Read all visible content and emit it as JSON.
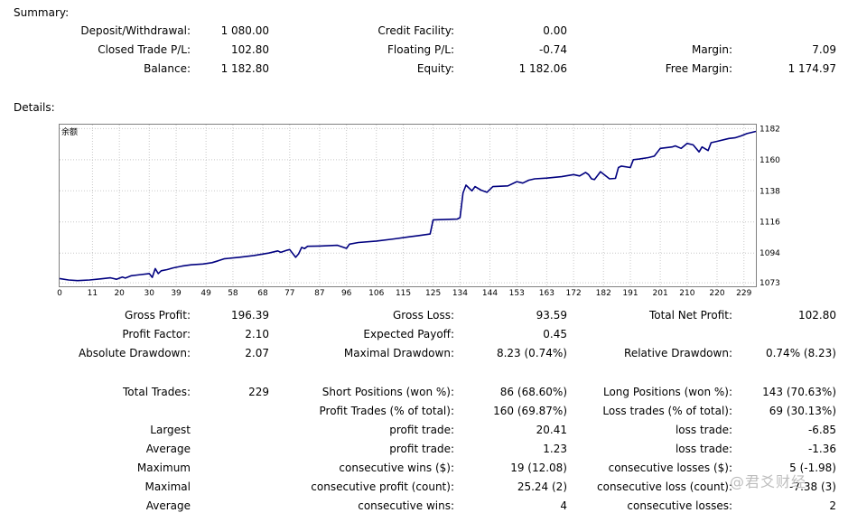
{
  "summary": {
    "title": "Summary:",
    "rows": [
      [
        {
          "label": "Deposit/Withdrawal:",
          "value": "1 080.00"
        },
        {
          "label": "Credit Facility:",
          "value": "0.00"
        },
        null
      ],
      [
        {
          "label": "Closed Trade P/L:",
          "value": "102.80"
        },
        {
          "label": "Floating P/L:",
          "value": "-0.74"
        },
        {
          "label": "Margin:",
          "value": "7.09"
        }
      ],
      [
        {
          "label": "Balance:",
          "value": "1 182.80"
        },
        {
          "label": "Equity:",
          "value": "1 182.06"
        },
        {
          "label": "Free Margin:",
          "value": "1 174.97"
        }
      ]
    ]
  },
  "details": {
    "title": "Details:"
  },
  "chart_data": {
    "type": "line",
    "title": "",
    "legend_label": "余额",
    "x_ticks": [
      0,
      11,
      20,
      30,
      39,
      49,
      58,
      68,
      77,
      87,
      96,
      106,
      115,
      125,
      134,
      144,
      153,
      163,
      172,
      182,
      191,
      201,
      210,
      220,
      229
    ],
    "y_ticks": [
      1073,
      1094,
      1116,
      1138,
      1160,
      1182
    ],
    "xlim": [
      0,
      233
    ],
    "ylim": [
      1070.5,
      1184.8
    ],
    "grid": true,
    "series": [
      {
        "name": "",
        "color": "#00007f",
        "x": [
          0,
          3,
          6,
          10,
          14,
          17,
          19,
          21,
          22,
          24,
          26,
          30,
          31,
          32,
          33,
          34,
          36,
          38,
          41,
          44,
          48,
          51,
          53,
          55,
          60,
          65,
          70,
          73,
          74,
          75,
          76,
          77,
          79,
          80,
          81,
          82,
          83,
          87,
          93,
          95,
          96,
          97,
          100,
          106,
          112,
          117,
          120,
          124,
          125,
          133,
          134,
          135,
          136,
          138,
          139,
          141,
          143,
          145,
          150,
          153,
          155,
          157,
          159,
          163,
          168,
          172,
          174,
          176,
          177,
          178,
          179,
          181,
          184,
          186,
          187,
          188,
          191,
          192,
          194,
          197,
          199,
          201,
          205,
          206,
          208,
          210,
          212,
          214,
          215,
          217,
          218,
          220,
          224,
          226,
          228,
          230,
          233
        ],
        "y": [
          1076,
          1075,
          1074.5,
          1075,
          1075.8,
          1076.5,
          1075.5,
          1077,
          1076.3,
          1078,
          1078.5,
          1079.5,
          1076.8,
          1083,
          1079.5,
          1081.5,
          1082.3,
          1083.5,
          1084.8,
          1085.7,
          1086.3,
          1087.2,
          1088.5,
          1089.9,
          1091,
          1092.3,
          1094,
          1095.5,
          1094.5,
          1095.2,
          1096,
          1096.5,
          1091,
          1093.5,
          1098,
          1097.2,
          1098.8,
          1099,
          1099.5,
          1098,
          1097.3,
          1100.3,
          1101.5,
          1102.5,
          1104,
          1105.5,
          1106.3,
          1107.5,
          1117.5,
          1118,
          1119,
          1136.5,
          1142,
          1138,
          1141,
          1138.5,
          1137,
          1141,
          1141.5,
          1144.5,
          1143.5,
          1145.5,
          1146.5,
          1147,
          1148,
          1149.5,
          1148.5,
          1151,
          1149.5,
          1146.5,
          1146,
          1151.5,
          1146.5,
          1146.8,
          1154.5,
          1155.5,
          1154.5,
          1160,
          1160.5,
          1161.5,
          1162.5,
          1168,
          1169,
          1169.8,
          1168,
          1171.5,
          1170.5,
          1165.5,
          1169,
          1166.5,
          1172,
          1173,
          1175,
          1175.5,
          1176.8,
          1178.5,
          1180
        ]
      }
    ]
  },
  "stats": {
    "r1": [
      {
        "label": "Gross Profit:",
        "value": "196.39"
      },
      {
        "label": "Gross Loss:",
        "value": "93.59"
      },
      {
        "label": "Total Net Profit:",
        "value": "102.80"
      }
    ],
    "r2": [
      {
        "label": "Profit Factor:",
        "value": "2.10"
      },
      {
        "label": "Expected Payoff:",
        "value": "0.45"
      }
    ],
    "r3": [
      {
        "label": "Absolute Drawdown:",
        "value": "2.07"
      },
      {
        "label": "Maximal Drawdown:",
        "value": "8.23 (0.74%)"
      },
      {
        "label": "Relative Drawdown:",
        "value": "0.74% (8.23)"
      }
    ]
  },
  "trades": {
    "total_label": "Total Trades:",
    "total_value": "229",
    "short_label": "Short Positions (won %):",
    "short_value": "86 (68.60%)",
    "long_label": "Long Positions (won %):",
    "long_value": "143 (70.63%)",
    "profit_trades_label": "Profit Trades (% of total):",
    "profit_trades_value": "160 (69.87%)",
    "loss_trades_label": "Loss trades (% of total):",
    "loss_trades_value": "69 (30.13%)",
    "rows": [
      {
        "prefix": "Largest",
        "mid_label": "profit trade:",
        "mid_value": "20.41",
        "right_label": "loss trade:",
        "right_value": "-6.85"
      },
      {
        "prefix": "Average",
        "mid_label": "profit trade:",
        "mid_value": "1.23",
        "right_label": "loss trade:",
        "right_value": "-1.36"
      },
      {
        "prefix": "Maximum",
        "mid_label": "consecutive wins ($):",
        "mid_value": "19 (12.08)",
        "right_label": "consecutive losses ($):",
        "right_value": "5 (-1.98)"
      },
      {
        "prefix": "Maximal",
        "mid_label": "consecutive profit (count):",
        "mid_value": "25.24 (2)",
        "right_label": "consecutive loss (count):",
        "right_value": "-7.38 (3)"
      },
      {
        "prefix": "Average",
        "mid_label": "consecutive wins:",
        "mid_value": "4",
        "right_label": "consecutive losses:",
        "right_value": "2"
      }
    ]
  },
  "watermark": {
    "text": "@君爻财经"
  }
}
